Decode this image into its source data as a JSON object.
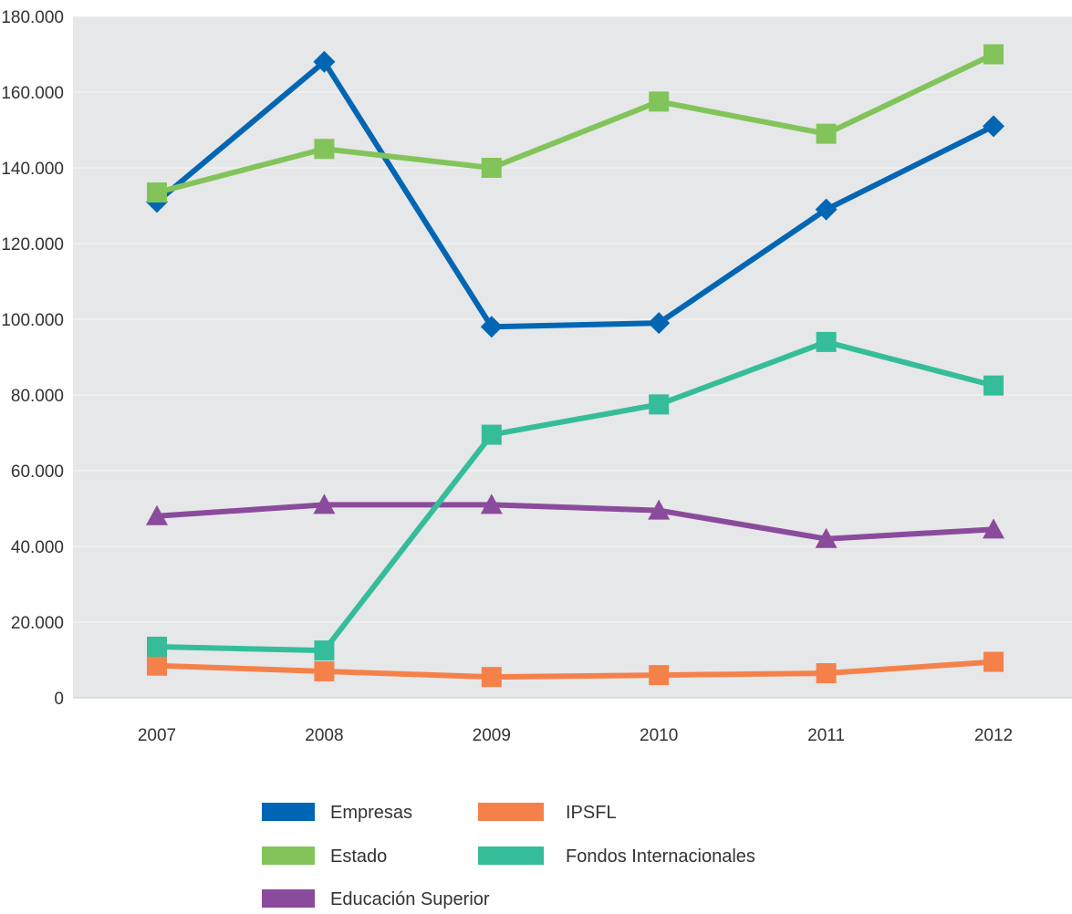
{
  "chart_data": {
    "type": "line",
    "title": "",
    "xlabel": "",
    "ylabel": "",
    "categories": [
      "2007",
      "2008",
      "2009",
      "2010",
      "2011",
      "2012"
    ],
    "ylim": [
      0,
      180000
    ],
    "y_ticks": [
      {
        "value": 0,
        "label": "0"
      },
      {
        "value": 20000,
        "label": "20.000"
      },
      {
        "value": 40000,
        "label": "40.000"
      },
      {
        "value": 60000,
        "label": "60.000"
      },
      {
        "value": 80000,
        "label": "80.000"
      },
      {
        "value": 100000,
        "label": "100.000"
      },
      {
        "value": 120000,
        "label": "120.000"
      },
      {
        "value": 140000,
        "label": "140.000"
      },
      {
        "value": 160000,
        "label": "160.000"
      },
      {
        "value": 180000,
        "label": "180.000"
      }
    ],
    "grid": true,
    "legend_position": "bottom",
    "series": [
      {
        "name": "Empresas",
        "color": "#0066b3",
        "marker": "diamond",
        "values": [
          131000,
          168000,
          98000,
          99000,
          129000,
          151000
        ]
      },
      {
        "name": "Estado",
        "color": "#82c45a",
        "marker": "square",
        "values": [
          133500,
          145000,
          140000,
          157500,
          149000,
          170000
        ]
      },
      {
        "name": "Educación Superior",
        "color": "#8a4b9c",
        "marker": "triangle",
        "values": [
          48000,
          51000,
          51000,
          49500,
          42000,
          44500
        ]
      },
      {
        "name": "IPSFL",
        "color": "#f5814a",
        "marker": "square",
        "values": [
          8500,
          7000,
          5500,
          6000,
          6500,
          9500
        ]
      },
      {
        "name": "Fondos Internacionales",
        "color": "#35bd9a",
        "marker": "square",
        "values": [
          13500,
          12500,
          69500,
          77500,
          94000,
          82500
        ]
      }
    ]
  }
}
